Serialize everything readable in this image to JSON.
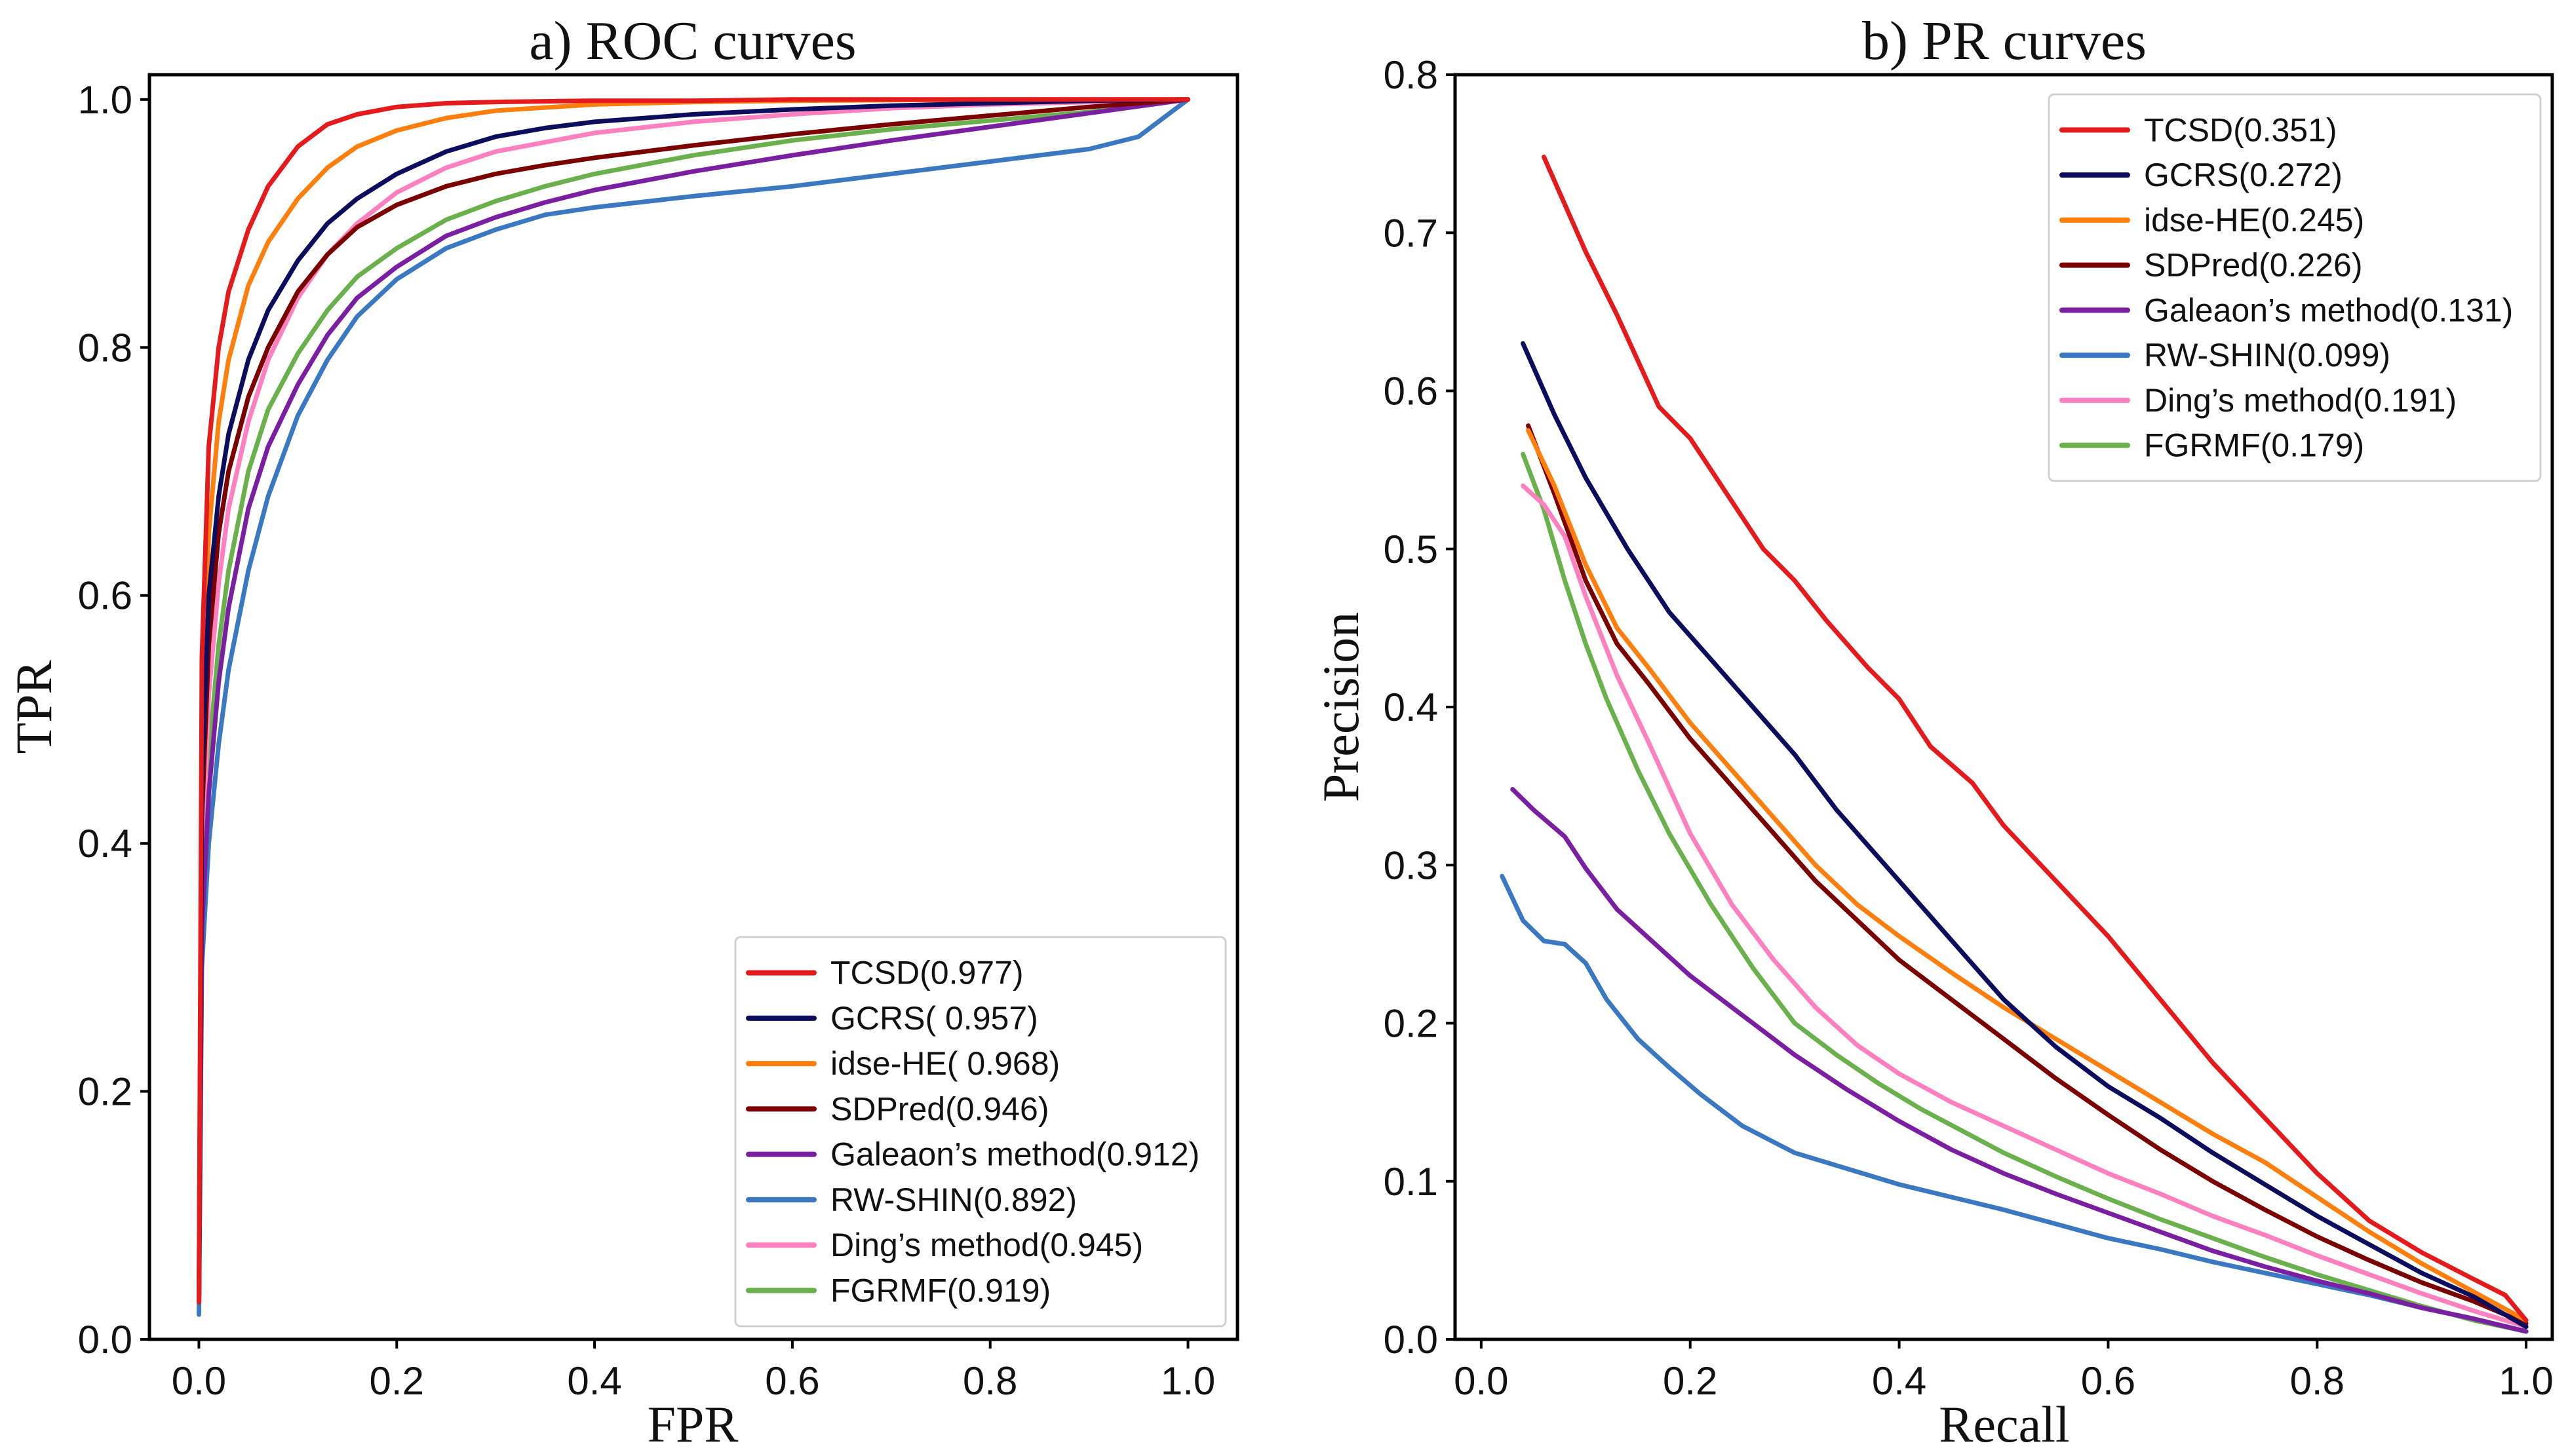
{
  "figure": {
    "name": "roc-pr-comparison"
  },
  "chart_data": [
    {
      "type": "line",
      "id": "roc",
      "title": "a) ROC curves",
      "xlabel": "FPR",
      "ylabel": "TPR",
      "xlim": [
        -0.05,
        1.05
      ],
      "ylim": [
        0.0,
        1.02
      ],
      "xticks": [
        0.0,
        0.2,
        0.4,
        0.6,
        0.8,
        1.0
      ],
      "xtick_labels": [
        "0.0",
        "0.2",
        "0.4",
        "0.6",
        "0.8",
        "1.0"
      ],
      "yticks": [
        0.0,
        0.2,
        0.4,
        0.6,
        0.8,
        1.0
      ],
      "ytick_labels": [
        "0.0",
        "0.2",
        "0.4",
        "0.6",
        "0.8",
        "1.0"
      ],
      "grid": false,
      "legend_position": "lower-right",
      "series": [
        {
          "name": "TCSD(0.977)",
          "color": "#e41a1c",
          "x": [
            0,
            0.003,
            0.01,
            0.02,
            0.03,
            0.05,
            0.07,
            0.1,
            0.13,
            0.16,
            0.2,
            0.25,
            0.3,
            0.4,
            0.5,
            0.6,
            0.8,
            1.0
          ],
          "y": [
            0.03,
            0.55,
            0.72,
            0.8,
            0.845,
            0.895,
            0.93,
            0.962,
            0.98,
            0.988,
            0.994,
            0.997,
            0.998,
            0.999,
            0.999,
            1.0,
            1.0,
            1.0
          ]
        },
        {
          "name": "GCRS( 0.957)",
          "color": "#0d0d5e",
          "x": [
            0,
            0.003,
            0.01,
            0.02,
            0.03,
            0.05,
            0.07,
            0.1,
            0.13,
            0.16,
            0.2,
            0.25,
            0.3,
            0.35,
            0.4,
            0.5,
            0.6,
            0.7,
            0.8,
            0.9,
            1.0
          ],
          "y": [
            0.03,
            0.45,
            0.6,
            0.68,
            0.73,
            0.79,
            0.83,
            0.87,
            0.9,
            0.92,
            0.94,
            0.958,
            0.97,
            0.977,
            0.982,
            0.988,
            0.992,
            0.995,
            0.997,
            0.999,
            1.0
          ]
        },
        {
          "name": "idse-HE( 0.968)",
          "color": "#ff7f0e",
          "x": [
            0,
            0.003,
            0.01,
            0.02,
            0.03,
            0.05,
            0.07,
            0.1,
            0.13,
            0.16,
            0.2,
            0.25,
            0.3,
            0.4,
            0.5,
            0.6,
            0.8,
            1.0
          ],
          "y": [
            0.03,
            0.5,
            0.65,
            0.74,
            0.79,
            0.85,
            0.885,
            0.92,
            0.945,
            0.962,
            0.975,
            0.985,
            0.991,
            0.996,
            0.998,
            0.999,
            1.0,
            1.0
          ]
        },
        {
          "name": "SDPred(0.946)",
          "color": "#7b0000",
          "x": [
            0,
            0.003,
            0.01,
            0.02,
            0.03,
            0.05,
            0.07,
            0.1,
            0.13,
            0.16,
            0.2,
            0.25,
            0.3,
            0.35,
            0.4,
            0.5,
            0.6,
            0.7,
            0.8,
            0.9,
            1.0
          ],
          "y": [
            0.03,
            0.42,
            0.56,
            0.65,
            0.7,
            0.76,
            0.8,
            0.845,
            0.875,
            0.897,
            0.915,
            0.93,
            0.94,
            0.947,
            0.953,
            0.963,
            0.972,
            0.98,
            0.987,
            0.994,
            1.0
          ]
        },
        {
          "name": "Galeaon’s method(0.912)",
          "color": "#7b1fa2",
          "x": [
            0,
            0.003,
            0.01,
            0.02,
            0.03,
            0.05,
            0.07,
            0.1,
            0.13,
            0.16,
            0.2,
            0.25,
            0.3,
            0.35,
            0.4,
            0.5,
            0.6,
            0.7,
            0.8,
            0.9,
            1.0
          ],
          "y": [
            0.03,
            0.33,
            0.44,
            0.53,
            0.59,
            0.67,
            0.72,
            0.77,
            0.81,
            0.84,
            0.865,
            0.89,
            0.905,
            0.917,
            0.927,
            0.942,
            0.955,
            0.967,
            0.978,
            0.989,
            1.0
          ]
        },
        {
          "name": "RW-SHIN(0.892)",
          "color": "#3a78c2",
          "x": [
            0,
            0.003,
            0.01,
            0.02,
            0.03,
            0.05,
            0.07,
            0.1,
            0.13,
            0.16,
            0.2,
            0.25,
            0.3,
            0.35,
            0.4,
            0.5,
            0.6,
            0.7,
            0.8,
            0.9,
            0.95,
            1.0
          ],
          "y": [
            0.02,
            0.3,
            0.4,
            0.48,
            0.54,
            0.62,
            0.68,
            0.745,
            0.79,
            0.825,
            0.855,
            0.88,
            0.895,
            0.907,
            0.913,
            0.922,
            0.93,
            0.94,
            0.95,
            0.96,
            0.97,
            1.0
          ]
        },
        {
          "name": "Ding’s method(0.945)",
          "color": "#ff80c0",
          "x": [
            0,
            0.003,
            0.01,
            0.02,
            0.03,
            0.05,
            0.07,
            0.1,
            0.13,
            0.16,
            0.2,
            0.25,
            0.3,
            0.4,
            0.5,
            0.6,
            0.7,
            0.8,
            0.9,
            1.0
          ],
          "y": [
            0.03,
            0.38,
            0.52,
            0.61,
            0.67,
            0.74,
            0.79,
            0.84,
            0.875,
            0.9,
            0.925,
            0.945,
            0.958,
            0.973,
            0.982,
            0.988,
            0.993,
            0.996,
            0.998,
            1.0
          ]
        },
        {
          "name": "FGRMF(0.919)",
          "color": "#6ab04c",
          "x": [
            0,
            0.003,
            0.01,
            0.02,
            0.03,
            0.05,
            0.07,
            0.1,
            0.13,
            0.16,
            0.2,
            0.25,
            0.3,
            0.35,
            0.4,
            0.5,
            0.6,
            0.7,
            0.8,
            0.9,
            1.0
          ],
          "y": [
            0.03,
            0.35,
            0.47,
            0.56,
            0.62,
            0.7,
            0.75,
            0.795,
            0.83,
            0.857,
            0.88,
            0.903,
            0.918,
            0.93,
            0.94,
            0.955,
            0.967,
            0.976,
            0.983,
            0.99,
            1.0
          ]
        }
      ]
    },
    {
      "type": "line",
      "id": "pr",
      "title": "b) PR curves",
      "xlabel": "Recall",
      "ylabel": "Precision",
      "xlim": [
        -0.025,
        1.025
      ],
      "ylim": [
        0.0,
        0.8
      ],
      "xticks": [
        0.0,
        0.2,
        0.4,
        0.6,
        0.8,
        1.0
      ],
      "xtick_labels": [
        "0.0",
        "0.2",
        "0.4",
        "0.6",
        "0.8",
        "1.0"
      ],
      "yticks": [
        0.0,
        0.1,
        0.2,
        0.3,
        0.4,
        0.5,
        0.6,
        0.7,
        0.8
      ],
      "ytick_labels": [
        "0.0",
        "0.1",
        "0.2",
        "0.3",
        "0.4",
        "0.5",
        "0.6",
        "0.7",
        "0.8"
      ],
      "grid": false,
      "legend_position": "upper-right",
      "series": [
        {
          "name": "TCSD(0.351)",
          "color": "#e41a1c",
          "x": [
            0.06,
            0.1,
            0.13,
            0.17,
            0.2,
            0.23,
            0.27,
            0.3,
            0.33,
            0.37,
            0.4,
            0.43,
            0.47,
            0.5,
            0.55,
            0.6,
            0.65,
            0.7,
            0.75,
            0.8,
            0.85,
            0.9,
            0.95,
            0.98,
            1.0
          ],
          "y": [
            0.748,
            0.688,
            0.648,
            0.59,
            0.57,
            0.54,
            0.5,
            0.48,
            0.455,
            0.425,
            0.405,
            0.375,
            0.352,
            0.325,
            0.29,
            0.255,
            0.215,
            0.175,
            0.14,
            0.105,
            0.075,
            0.055,
            0.038,
            0.028,
            0.012
          ]
        },
        {
          "name": "GCRS(0.272)",
          "color": "#0d0d5e",
          "x": [
            0.04,
            0.07,
            0.1,
            0.14,
            0.18,
            0.22,
            0.26,
            0.3,
            0.34,
            0.38,
            0.42,
            0.46,
            0.5,
            0.55,
            0.6,
            0.65,
            0.7,
            0.75,
            0.8,
            0.85,
            0.9,
            0.95,
            1.0
          ],
          "y": [
            0.63,
            0.585,
            0.545,
            0.5,
            0.46,
            0.43,
            0.4,
            0.37,
            0.335,
            0.305,
            0.275,
            0.245,
            0.215,
            0.185,
            0.16,
            0.14,
            0.118,
            0.098,
            0.078,
            0.06,
            0.042,
            0.027,
            0.008
          ]
        },
        {
          "name": "idse-HE(0.245)",
          "color": "#ff7f0e",
          "x": [
            0.045,
            0.07,
            0.1,
            0.13,
            0.16,
            0.2,
            0.24,
            0.28,
            0.32,
            0.36,
            0.4,
            0.45,
            0.5,
            0.55,
            0.6,
            0.65,
            0.7,
            0.75,
            0.8,
            0.85,
            0.9,
            0.95,
            1.0
          ],
          "y": [
            0.575,
            0.54,
            0.49,
            0.45,
            0.425,
            0.39,
            0.36,
            0.33,
            0.3,
            0.275,
            0.255,
            0.232,
            0.21,
            0.19,
            0.17,
            0.15,
            0.13,
            0.112,
            0.09,
            0.068,
            0.048,
            0.03,
            0.012
          ]
        },
        {
          "name": "SDPred(0.226)",
          "color": "#7b0000",
          "x": [
            0.045,
            0.07,
            0.1,
            0.13,
            0.16,
            0.2,
            0.24,
            0.28,
            0.32,
            0.36,
            0.4,
            0.45,
            0.5,
            0.55,
            0.6,
            0.65,
            0.7,
            0.75,
            0.8,
            0.85,
            0.9,
            0.95,
            1.0
          ],
          "y": [
            0.578,
            0.535,
            0.48,
            0.44,
            0.415,
            0.38,
            0.35,
            0.32,
            0.29,
            0.265,
            0.24,
            0.215,
            0.19,
            0.165,
            0.142,
            0.12,
            0.1,
            0.082,
            0.065,
            0.05,
            0.036,
            0.024,
            0.01
          ]
        },
        {
          "name": "Galeaon’s method(0.131)",
          "color": "#7b1fa2",
          "x": [
            0.03,
            0.05,
            0.08,
            0.1,
            0.13,
            0.17,
            0.2,
            0.25,
            0.3,
            0.35,
            0.4,
            0.45,
            0.5,
            0.55,
            0.6,
            0.65,
            0.7,
            0.75,
            0.8,
            0.85,
            0.9,
            0.95,
            1.0
          ],
          "y": [
            0.348,
            0.335,
            0.318,
            0.298,
            0.272,
            0.248,
            0.23,
            0.205,
            0.18,
            0.158,
            0.138,
            0.12,
            0.105,
            0.092,
            0.08,
            0.068,
            0.056,
            0.046,
            0.037,
            0.029,
            0.02,
            0.013,
            0.005
          ]
        },
        {
          "name": "RW-SHIN(0.099)",
          "color": "#3a78c2",
          "x": [
            0.02,
            0.04,
            0.06,
            0.08,
            0.1,
            0.12,
            0.15,
            0.18,
            0.21,
            0.25,
            0.3,
            0.35,
            0.4,
            0.45,
            0.5,
            0.55,
            0.6,
            0.65,
            0.7,
            0.75,
            0.8,
            0.85,
            0.9,
            0.95,
            1.0
          ],
          "y": [
            0.293,
            0.265,
            0.252,
            0.25,
            0.238,
            0.215,
            0.19,
            0.172,
            0.155,
            0.135,
            0.118,
            0.108,
            0.098,
            0.09,
            0.082,
            0.073,
            0.064,
            0.057,
            0.049,
            0.042,
            0.035,
            0.028,
            0.02,
            0.013,
            0.005
          ]
        },
        {
          "name": "Ding’s method(0.191)",
          "color": "#ff80c0",
          "x": [
            0.04,
            0.06,
            0.08,
            0.1,
            0.13,
            0.16,
            0.2,
            0.24,
            0.28,
            0.32,
            0.36,
            0.4,
            0.45,
            0.5,
            0.55,
            0.6,
            0.65,
            0.7,
            0.75,
            0.8,
            0.85,
            0.9,
            0.95,
            1.0
          ],
          "y": [
            0.54,
            0.528,
            0.508,
            0.47,
            0.42,
            0.378,
            0.32,
            0.275,
            0.24,
            0.21,
            0.186,
            0.168,
            0.15,
            0.135,
            0.12,
            0.105,
            0.092,
            0.078,
            0.066,
            0.053,
            0.041,
            0.029,
            0.018,
            0.008
          ]
        },
        {
          "name": "FGRMF(0.179)",
          "color": "#6ab04c",
          "x": [
            0.04,
            0.06,
            0.08,
            0.1,
            0.12,
            0.15,
            0.18,
            0.22,
            0.26,
            0.3,
            0.34,
            0.38,
            0.42,
            0.46,
            0.5,
            0.55,
            0.6,
            0.65,
            0.7,
            0.75,
            0.8,
            0.85,
            0.9,
            0.95,
            1.0
          ],
          "y": [
            0.56,
            0.525,
            0.48,
            0.44,
            0.405,
            0.36,
            0.32,
            0.275,
            0.235,
            0.2,
            0.18,
            0.162,
            0.146,
            0.132,
            0.118,
            0.103,
            0.089,
            0.076,
            0.064,
            0.052,
            0.041,
            0.031,
            0.021,
            0.012,
            0.005
          ]
        }
      ]
    }
  ]
}
